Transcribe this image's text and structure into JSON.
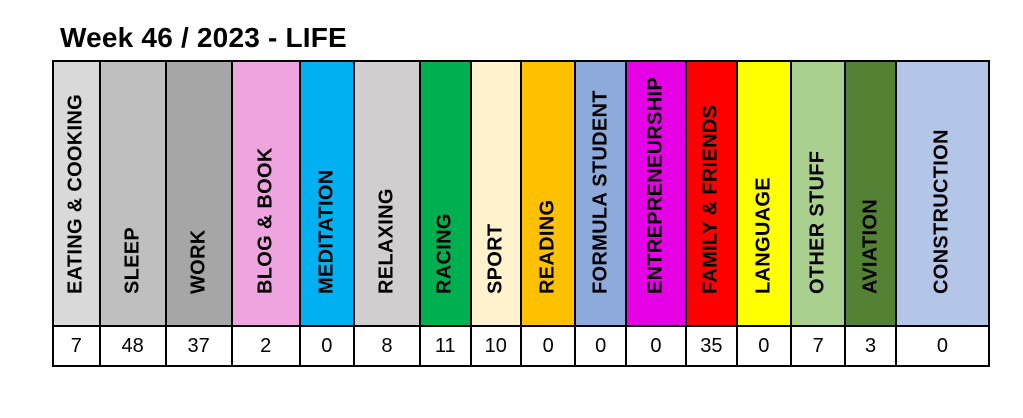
{
  "title": "Week 46 / 2023 - LIFE",
  "categories": [
    {
      "label": "EATING & COOKING",
      "value": "7",
      "color": "#d9d9d9"
    },
    {
      "label": "SLEEP",
      "value": "48",
      "color": "#bfbfbf"
    },
    {
      "label": "WORK",
      "value": "37",
      "color": "#a6a6a6"
    },
    {
      "label": "BLOG & BOOK",
      "value": "2",
      "color": "#efa3df"
    },
    {
      "label": "MEDITATION",
      "value": "0",
      "color": "#00b0f0"
    },
    {
      "label": "RELAXING",
      "value": "8",
      "color": "#d0cece"
    },
    {
      "label": "RACING",
      "value": "11",
      "color": "#00b050"
    },
    {
      "label": "SPORT",
      "value": "10",
      "color": "#fff2cc"
    },
    {
      "label": "READING",
      "value": "0",
      "color": "#ffc000"
    },
    {
      "label": "FORMULA STUDENT",
      "value": "0",
      "color": "#8ea9db"
    },
    {
      "label": "ENTREPRENEURSHIP",
      "value": "0",
      "color": "#e600e6"
    },
    {
      "label": "FAMILY & FRIENDS",
      "value": "35",
      "color": "#ff0000"
    },
    {
      "label": "LANGUAGE",
      "value": "0",
      "color": "#ffff00"
    },
    {
      "label": "OTHER STUFF",
      "value": "7",
      "color": "#a9d08e"
    },
    {
      "label": "AVIATION",
      "value": "3",
      "color": "#548235"
    },
    {
      "label": "CONSTRUCTION",
      "value": "0",
      "color": "#b4c6e7"
    }
  ]
}
